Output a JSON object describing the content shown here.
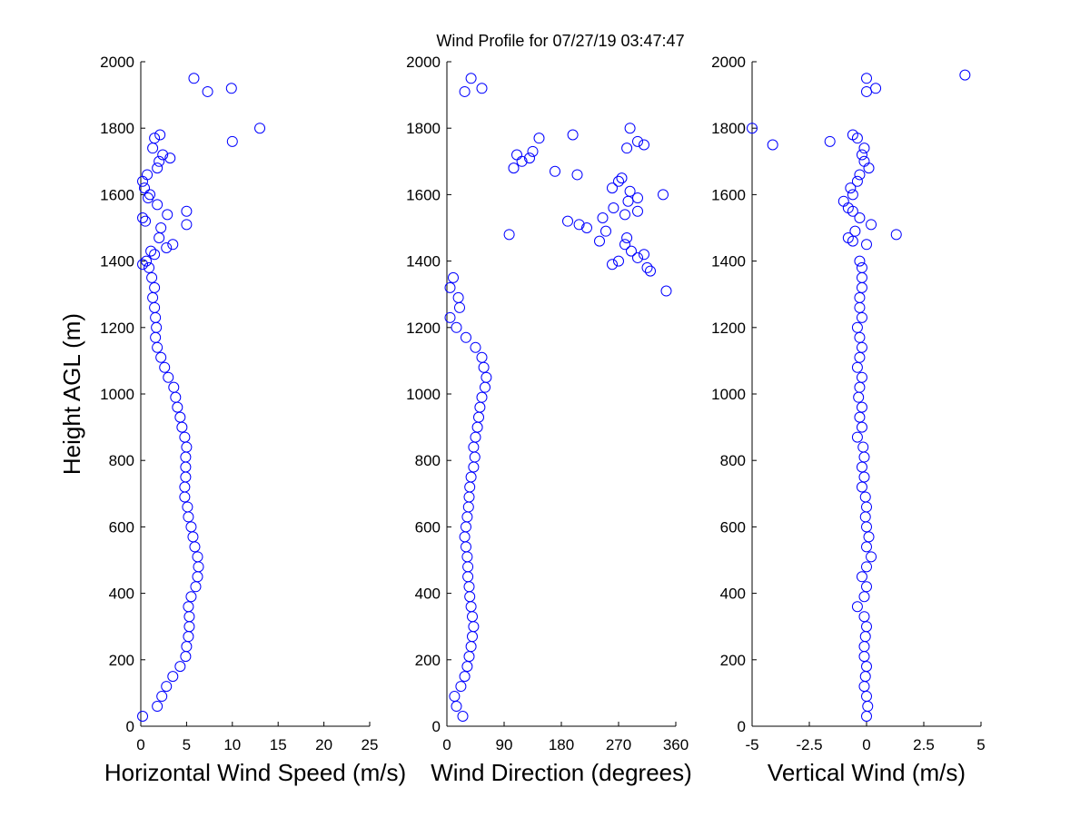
{
  "title": "Wind Profile for  07/27/19 03:47:47",
  "chart_data": [
    {
      "type": "scatter",
      "xlabel": "Horizontal Wind Speed (m/s)",
      "ylabel": "Height AGL (m)",
      "color": "#0000ff",
      "xlim": [
        0,
        25
      ],
      "xticks": [
        0,
        5,
        10,
        15,
        20,
        25
      ],
      "ylim": [
        0,
        2000
      ],
      "yticks": [
        0,
        200,
        400,
        600,
        800,
        1000,
        1200,
        1400,
        1600,
        1800,
        2000
      ],
      "x": [
        0.2,
        1.8,
        2.3,
        2.8,
        3.5,
        4.3,
        4.9,
        5.0,
        5.2,
        5.3,
        5.3,
        5.2,
        5.5,
        6.0,
        6.2,
        6.3,
        6.2,
        5.9,
        5.7,
        5.5,
        5.2,
        5.1,
        4.8,
        4.8,
        4.9,
        4.9,
        4.9,
        5.0,
        4.8,
        4.5,
        4.3,
        4.0,
        3.8,
        3.6,
        3.0,
        2.6,
        2.2,
        1.8,
        1.6,
        1.7,
        1.6,
        1.5,
        1.3,
        1.5,
        1.2,
        0.9,
        0.2,
        0.6,
        1.5,
        1.1,
        2.8,
        3.5,
        2.0,
        2.2,
        5.0,
        0.5,
        0.2,
        2.9,
        5.0,
        1.8,
        0.8,
        1.0,
        0.4,
        0.2,
        0.7,
        1.8,
        2.0,
        3.2,
        2.4,
        1.3,
        10.0,
        1.5,
        2.1,
        13.0,
        7.3,
        9.9,
        5.8
      ],
      "y": [
        30,
        60,
        90,
        120,
        150,
        180,
        210,
        240,
        270,
        300,
        330,
        360,
        390,
        420,
        450,
        480,
        510,
        540,
        570,
        600,
        630,
        660,
        690,
        720,
        750,
        780,
        810,
        840,
        870,
        900,
        930,
        960,
        990,
        1020,
        1050,
        1080,
        1110,
        1140,
        1170,
        1200,
        1230,
        1260,
        1290,
        1320,
        1350,
        1380,
        1390,
        1400,
        1420,
        1430,
        1440,
        1450,
        1470,
        1500,
        1510,
        1520,
        1530,
        1540,
        1550,
        1570,
        1590,
        1600,
        1620,
        1640,
        1660,
        1680,
        1700,
        1710,
        1720,
        1740,
        1760,
        1770,
        1780,
        1800,
        1910,
        1920,
        1950
      ]
    },
    {
      "type": "scatter",
      "xlabel": "Wind Direction (degrees)",
      "color": "#0000ff",
      "xlim": [
        0,
        360
      ],
      "xticks": [
        0,
        90,
        180,
        270,
        360
      ],
      "ylim": [
        0,
        2000
      ],
      "yticks": [
        0,
        200,
        400,
        600,
        800,
        1000,
        1200,
        1400,
        1600,
        1800,
        2000
      ],
      "x": [
        25,
        15,
        12,
        22,
        28,
        32,
        35,
        38,
        40,
        42,
        40,
        38,
        36,
        35,
        33,
        33,
        32,
        30,
        28,
        30,
        32,
        34,
        35,
        36,
        38,
        42,
        44,
        42,
        45,
        48,
        50,
        52,
        55,
        60,
        62,
        58,
        55,
        45,
        30,
        15,
        5,
        20,
        18,
        5,
        10,
        345,
        320,
        315,
        260,
        270,
        300,
        310,
        290,
        280,
        240,
        283,
        98,
        250,
        220,
        208,
        190,
        245,
        280,
        300,
        262,
        285,
        300,
        340,
        288,
        260,
        270,
        275,
        205,
        170,
        105,
        118,
        130,
        110,
        135,
        283,
        310,
        300,
        145,
        198,
        288,
        28,
        55,
        38
      ],
      "y": [
        30,
        60,
        90,
        120,
        150,
        180,
        210,
        240,
        270,
        300,
        330,
        360,
        390,
        420,
        450,
        480,
        510,
        540,
        570,
        600,
        630,
        660,
        690,
        720,
        750,
        780,
        810,
        840,
        870,
        900,
        930,
        960,
        990,
        1020,
        1050,
        1080,
        1110,
        1140,
        1170,
        1200,
        1230,
        1260,
        1290,
        1320,
        1350,
        1310,
        1370,
        1380,
        1390,
        1400,
        1410,
        1420,
        1430,
        1450,
        1460,
        1470,
        1480,
        1490,
        1500,
        1510,
        1520,
        1530,
        1540,
        1550,
        1560,
        1580,
        1590,
        1600,
        1610,
        1620,
        1640,
        1650,
        1660,
        1670,
        1680,
        1700,
        1710,
        1720,
        1730,
        1740,
        1750,
        1760,
        1770,
        1780,
        1800,
        1910,
        1920,
        1950
      ]
    },
    {
      "type": "scatter",
      "xlabel": "Vertical Wind (m/s)",
      "color": "#0000ff",
      "xlim": [
        -5,
        5
      ],
      "xticks": [
        -5,
        -2.5,
        0,
        2.5,
        5
      ],
      "ylim": [
        0,
        2000
      ],
      "yticks": [
        0,
        200,
        400,
        600,
        800,
        1000,
        1200,
        1400,
        1600,
        1800,
        2000
      ],
      "x": [
        0,
        0.05,
        0,
        -0.1,
        -0.05,
        0,
        -0.1,
        -0.1,
        -0.05,
        0,
        -0.1,
        -0.4,
        -0.1,
        0,
        -0.2,
        0,
        0.2,
        0,
        0.1,
        0,
        -0.05,
        0,
        -0.05,
        -0.2,
        -0.1,
        -0.2,
        -0.1,
        -0.15,
        -0.4,
        -0.2,
        -0.3,
        -0.2,
        -0.35,
        -0.3,
        -0.2,
        -0.4,
        -0.3,
        -0.2,
        -0.3,
        -0.4,
        -0.2,
        -0.3,
        -0.3,
        -0.2,
        -0.2,
        -0.2,
        -0.3,
        0,
        -0.6,
        -0.8,
        1.3,
        -0.5,
        0.2,
        -0.3,
        -0.6,
        -0.8,
        -1.0,
        -0.6,
        -0.7,
        -0.4,
        -0.3,
        0.1,
        -0.1,
        -0.2,
        -0.1,
        -4.1,
        -1.6,
        -0.4,
        -0.6,
        -5.0,
        0,
        0.4,
        0,
        4.3
      ],
      "y": [
        30,
        60,
        90,
        120,
        150,
        180,
        210,
        240,
        270,
        300,
        330,
        360,
        390,
        420,
        450,
        480,
        510,
        540,
        570,
        600,
        630,
        660,
        690,
        720,
        750,
        780,
        810,
        840,
        870,
        900,
        930,
        960,
        990,
        1020,
        1050,
        1080,
        1110,
        1140,
        1170,
        1200,
        1230,
        1260,
        1290,
        1320,
        1350,
        1380,
        1400,
        1450,
        1460,
        1470,
        1480,
        1490,
        1510,
        1530,
        1550,
        1560,
        1580,
        1600,
        1620,
        1640,
        1660,
        1680,
        1700,
        1720,
        1740,
        1750,
        1760,
        1770,
        1780,
        1800,
        1910,
        1920,
        1950,
        1960
      ]
    }
  ]
}
